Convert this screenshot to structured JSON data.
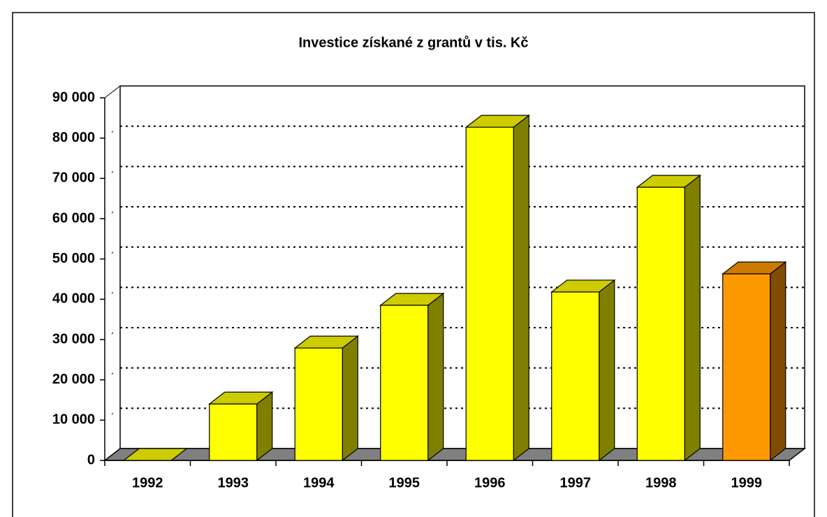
{
  "chart_data": {
    "type": "bar3d",
    "title": "Investice získané z grantů v tis. Kč",
    "categories": [
      "1992",
      "1993",
      "1994",
      "1995",
      "1996",
      "1997",
      "1998",
      "1999"
    ],
    "values": [
      0,
      14000,
      27900,
      38500,
      82700,
      41800,
      67800,
      46300
    ],
    "colors": [
      "#ffff00",
      "#ffff00",
      "#ffff00",
      "#ffff00",
      "#ffff00",
      "#ffff00",
      "#ffff00",
      "#ff9900"
    ],
    "ylim": [
      0,
      90000
    ],
    "yticks": [
      {
        "value": 0,
        "label": "0"
      },
      {
        "value": 10000,
        "label": "10 000"
      },
      {
        "value": 20000,
        "label": "20 000"
      },
      {
        "value": 30000,
        "label": "30 000"
      },
      {
        "value": 40000,
        "label": "40 000"
      },
      {
        "value": 50000,
        "label": "50 000"
      },
      {
        "value": 60000,
        "label": "60 000"
      },
      {
        "value": 70000,
        "label": "70 000"
      },
      {
        "value": 80000,
        "label": "80 000"
      },
      {
        "value": 90000,
        "label": "90 000"
      }
    ],
    "grid": true
  }
}
